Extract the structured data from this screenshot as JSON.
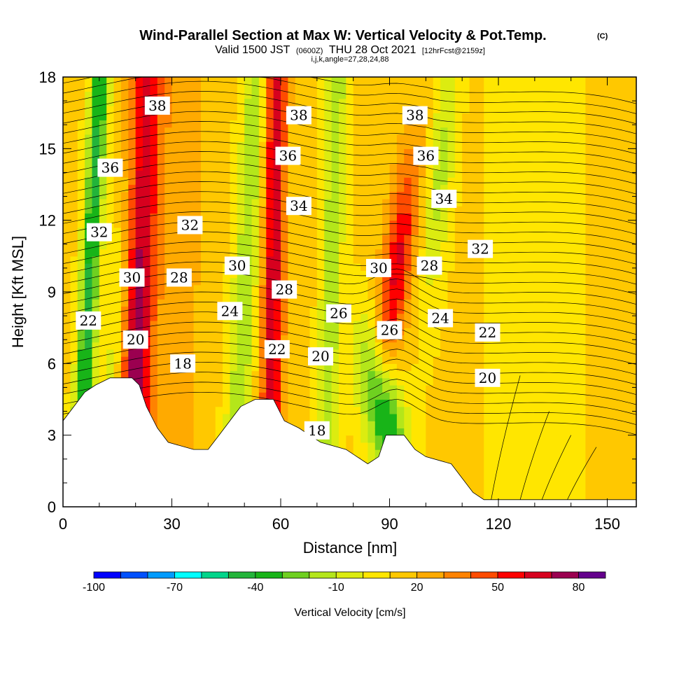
{
  "header": {
    "title": "Wind-Parallel Section at Max W: Vertical Velocity & Pot.Temp.",
    "copyright": "(C)",
    "valid_line": "Valid 1500 JST",
    "valid_utc": "(0600Z)",
    "valid_date": "THU 28 Oct 2021",
    "forecast_info": "[12hrFcst@2159z]",
    "index_line": "i,j,k,angle=27,28,24,88"
  },
  "chart_data": {
    "type": "heatmap",
    "title": "Wind-Parallel Section at Max W: Vertical Velocity & Pot.Temp.",
    "xlabel": "Distance [nm]",
    "ylabel": "Height [Kft MSL]",
    "xlim": [
      0,
      158
    ],
    "ylim": [
      0,
      18
    ],
    "x_ticks": [
      "0",
      "30",
      "60",
      "90",
      "120",
      "150"
    ],
    "x_tick_values": [
      0,
      30,
      60,
      90,
      120,
      150
    ],
    "y_ticks": [
      "0",
      "3",
      "6",
      "9",
      "12",
      "15",
      "18"
    ],
    "y_tick_values": [
      0,
      3,
      6,
      9,
      12,
      15,
      18
    ],
    "colorbar": {
      "title": "Vertical Velocity [cm/s]",
      "labels": [
        "-100",
        "-70",
        "-40",
        "-10",
        "20",
        "50",
        "80"
      ],
      "label_values": [
        -100,
        -70,
        -40,
        -10,
        20,
        50,
        80
      ],
      "bins": [
        {
          "from": -100,
          "to": -90,
          "color": "#0000ff"
        },
        {
          "from": -90,
          "to": -80,
          "color": "#0050ff"
        },
        {
          "from": -80,
          "to": -70,
          "color": "#009bff"
        },
        {
          "from": -70,
          "to": -60,
          "color": "#00ffff"
        },
        {
          "from": -60,
          "to": -50,
          "color": "#00d58a"
        },
        {
          "from": -50,
          "to": -40,
          "color": "#23b43a"
        },
        {
          "from": -40,
          "to": -30,
          "color": "#18b418"
        },
        {
          "from": -30,
          "to": -20,
          "color": "#6fd020"
        },
        {
          "from": -20,
          "to": -10,
          "color": "#b4e61a"
        },
        {
          "from": -10,
          "to": 0,
          "color": "#dcec10"
        },
        {
          "from": 0,
          "to": 10,
          "color": "#ffe600"
        },
        {
          "from": 10,
          "to": 20,
          "color": "#ffc800"
        },
        {
          "from": 20,
          "to": 30,
          "color": "#ffaa00"
        },
        {
          "from": 30,
          "to": 40,
          "color": "#ff8200"
        },
        {
          "from": 40,
          "to": 50,
          "color": "#ff4b00"
        },
        {
          "from": 50,
          "to": 60,
          "color": "#ff0000"
        },
        {
          "from": 60,
          "to": 70,
          "color": "#d7001e"
        },
        {
          "from": 70,
          "to": 80,
          "color": "#9b0050"
        },
        {
          "from": 80,
          "to": 90,
          "color": "#64008c"
        }
      ]
    },
    "terrain": [
      [
        0,
        3.6
      ],
      [
        3,
        4.2
      ],
      [
        6,
        4.8
      ],
      [
        9,
        5.1
      ],
      [
        13,
        5.4
      ],
      [
        19,
        5.4
      ],
      [
        21,
        5.1
      ],
      [
        23,
        4.2
      ],
      [
        26,
        3.3
      ],
      [
        29,
        2.7
      ],
      [
        36,
        2.4
      ],
      [
        40,
        2.4
      ],
      [
        43,
        3.0
      ],
      [
        46,
        3.6
      ],
      [
        49,
        4.2
      ],
      [
        53,
        4.5
      ],
      [
        58,
        4.5
      ],
      [
        61,
        3.6
      ],
      [
        65,
        3.3
      ],
      [
        68,
        3.0
      ],
      [
        71,
        2.7
      ],
      [
        78,
        2.4
      ],
      [
        81,
        2.1
      ],
      [
        84,
        1.8
      ],
      [
        87,
        2.1
      ],
      [
        89,
        3.0
      ],
      [
        94,
        3.0
      ],
      [
        97,
        2.4
      ],
      [
        100,
        2.1
      ],
      [
        107,
        1.8
      ],
      [
        110,
        1.2
      ],
      [
        113,
        0.6
      ],
      [
        116,
        0.3
      ],
      [
        158,
        0.3
      ]
    ],
    "theta_contours": [
      {
        "label": "18",
        "points": [
          [
            70,
            3.2
          ]
        ]
      },
      {
        "label": "18",
        "points": [
          [
            33,
            6.0
          ]
        ]
      },
      {
        "label": "20",
        "points": [
          [
            20,
            7.0
          ]
        ]
      },
      {
        "label": "20",
        "points": [
          [
            71,
            6.3
          ]
        ]
      },
      {
        "label": "20",
        "points": [
          [
            117,
            5.4
          ]
        ]
      },
      {
        "label": "22",
        "points": [
          [
            7,
            7.8
          ]
        ]
      },
      {
        "label": "22",
        "points": [
          [
            59,
            6.6
          ]
        ]
      },
      {
        "label": "22",
        "points": [
          [
            117,
            7.3
          ]
        ]
      },
      {
        "label": "24",
        "points": [
          [
            46,
            8.2
          ]
        ]
      },
      {
        "label": "24",
        "points": [
          [
            104,
            7.9
          ]
        ]
      },
      {
        "label": "26",
        "points": [
          [
            76,
            8.1
          ]
        ]
      },
      {
        "label": "26",
        "points": [
          [
            90,
            7.4
          ]
        ]
      },
      {
        "label": "28",
        "points": [
          [
            32,
            9.6
          ]
        ]
      },
      {
        "label": "28",
        "points": [
          [
            61,
            9.1
          ]
        ]
      },
      {
        "label": "28",
        "points": [
          [
            101,
            10.1
          ]
        ]
      },
      {
        "label": "30",
        "points": [
          [
            19,
            9.6
          ]
        ]
      },
      {
        "label": "30",
        "points": [
          [
            48,
            10.1
          ]
        ]
      },
      {
        "label": "30",
        "points": [
          [
            87,
            10.0
          ]
        ]
      },
      {
        "label": "32",
        "points": [
          [
            10,
            11.5
          ]
        ]
      },
      {
        "label": "32",
        "points": [
          [
            35,
            11.8
          ]
        ]
      },
      {
        "label": "32",
        "points": [
          [
            115,
            10.8
          ]
        ]
      },
      {
        "label": "34",
        "points": [
          [
            65,
            12.6
          ]
        ]
      },
      {
        "label": "34",
        "points": [
          [
            105,
            12.9
          ]
        ]
      },
      {
        "label": "36",
        "points": [
          [
            13,
            14.2
          ]
        ]
      },
      {
        "label": "36",
        "points": [
          [
            62,
            14.7
          ]
        ]
      },
      {
        "label": "36",
        "points": [
          [
            100,
            14.7
          ]
        ]
      },
      {
        "label": "38",
        "points": [
          [
            26,
            16.8
          ]
        ]
      },
      {
        "label": "38",
        "points": [
          [
            65,
            16.4
          ]
        ]
      },
      {
        "label": "38",
        "points": [
          [
            97,
            16.4
          ]
        ]
      }
    ]
  }
}
